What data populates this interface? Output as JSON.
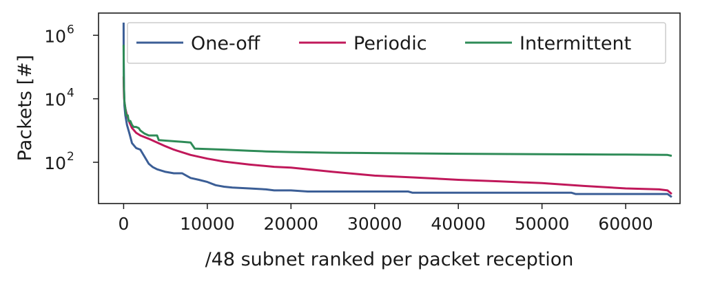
{
  "chart_data": {
    "type": "line",
    "title": "",
    "xlabel": "/48 subnet ranked per packet reception",
    "ylabel": "Packets [#]",
    "xlim": [
      -3000,
      66500
    ],
    "ylim_log10": [
      0.7,
      6.7
    ],
    "y_scale": "log",
    "grid": false,
    "legend_position": "top",
    "x_ticks": [
      {
        "value": 0,
        "label": "0"
      },
      {
        "value": 10000,
        "label": "10000"
      },
      {
        "value": 20000,
        "label": "20000"
      },
      {
        "value": 30000,
        "label": "30000"
      },
      {
        "value": 40000,
        "label": "40000"
      },
      {
        "value": 50000,
        "label": "50000"
      },
      {
        "value": 60000,
        "label": "60000"
      }
    ],
    "y_ticks": [
      {
        "value": 100,
        "base": "10",
        "exp": "2"
      },
      {
        "value": 10000,
        "base": "10",
        "exp": "4"
      },
      {
        "value": 1000000,
        "base": "10",
        "exp": "6"
      }
    ],
    "series": [
      {
        "name": "One-off",
        "color": "#3b5e96",
        "x": [
          1,
          2,
          50,
          100,
          200,
          400,
          700,
          1000,
          1500,
          2000,
          2500,
          3000,
          3500,
          4000,
          5000,
          6000,
          7000,
          7500,
          8000,
          9000,
          10000,
          11000,
          12000,
          13000,
          15000,
          17000,
          18000,
          20000,
          22000,
          25000,
          30000,
          34000,
          34500,
          40000,
          45000,
          50000,
          53500,
          54000,
          60000,
          65000,
          65500
        ],
        "y": [
          2500000,
          200000,
          20000,
          6000,
          3000,
          1500,
          800,
          400,
          280,
          250,
          150,
          90,
          70,
          60,
          50,
          45,
          45,
          38,
          32,
          28,
          24,
          19,
          17,
          16,
          15,
          14,
          13,
          13,
          12,
          12,
          12,
          12,
          11,
          11,
          11,
          11,
          11,
          10,
          10,
          10,
          8
        ]
      },
      {
        "name": "Periodic",
        "color": "#c0185a",
        "x": [
          1,
          20,
          50,
          100,
          200,
          400,
          700,
          1000,
          1500,
          2000,
          3000,
          4000,
          5000,
          6000,
          8000,
          10000,
          12000,
          15000,
          18000,
          20000,
          25000,
          30000,
          35000,
          40000,
          45000,
          50000,
          55000,
          60000,
          64000,
          65000,
          65500
        ],
        "y": [
          50000,
          20000,
          12000,
          8000,
          5000,
          3000,
          1800,
          1200,
          850,
          700,
          550,
          420,
          320,
          250,
          170,
          130,
          105,
          85,
          72,
          68,
          50,
          38,
          33,
          28,
          25,
          22,
          18,
          15,
          14,
          13,
          10
        ]
      },
      {
        "name": "Intermittent",
        "color": "#2e8b57",
        "x": [
          1,
          20,
          50,
          100,
          200,
          300,
          500,
          600,
          800,
          1000,
          1200,
          1500,
          1800,
          2000,
          2500,
          3000,
          4000,
          4200,
          5000,
          6000,
          7000,
          8000,
          8500,
          10000,
          12000,
          15000,
          17000,
          20000,
          25000,
          30000,
          40000,
          50000,
          60000,
          65000,
          65500
        ],
        "y": [
          500000,
          40000,
          20000,
          8000,
          5000,
          3000,
          3000,
          2000,
          2000,
          1500,
          1300,
          1300,
          1200,
          1000,
          800,
          700,
          700,
          500,
          480,
          460,
          440,
          420,
          270,
          260,
          250,
          230,
          220,
          210,
          200,
          195,
          185,
          180,
          175,
          170,
          160
        ]
      }
    ]
  }
}
